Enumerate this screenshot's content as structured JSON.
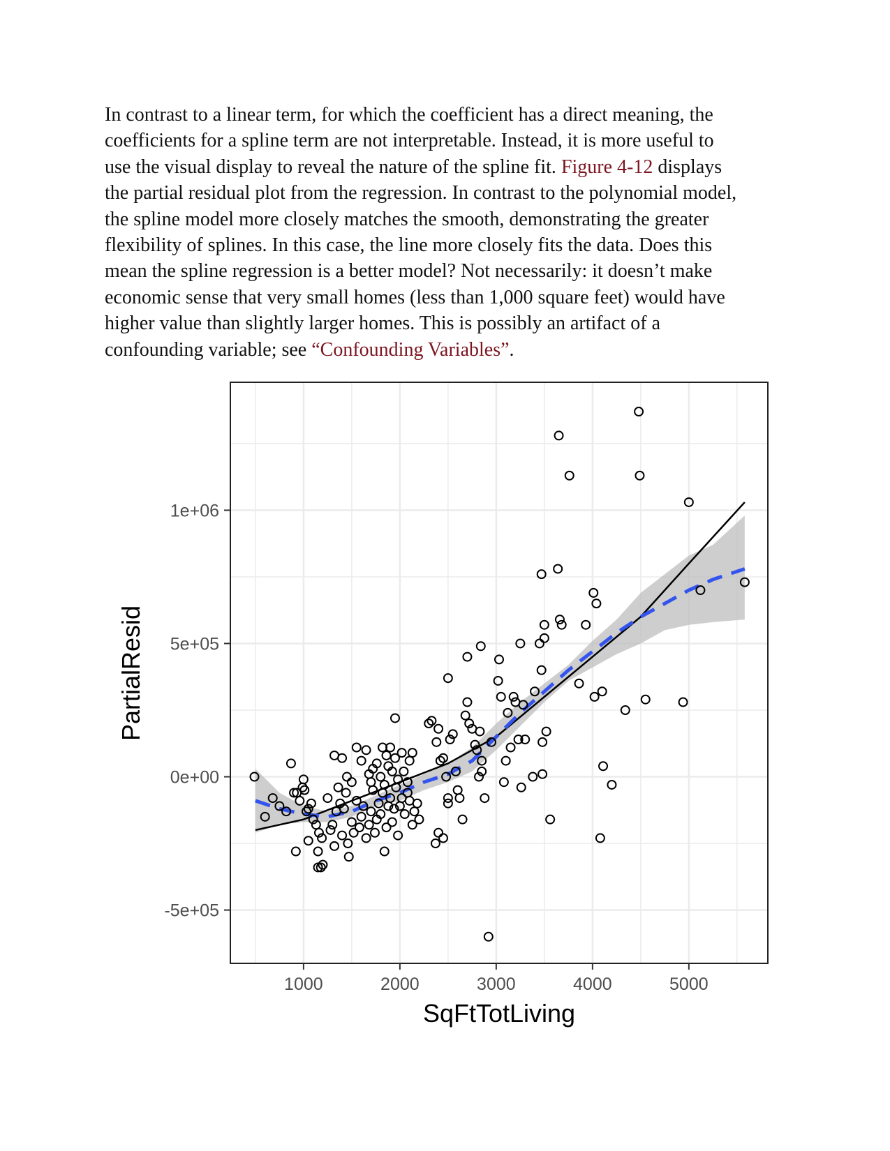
{
  "paragraph": {
    "l1": "In contrast to a linear term, for which the coefficient has a direct meaning, the",
    "l2": "coefficients for a spline term are not interpretable. Instead, it is more useful to",
    "l3_pre": "use the visual display to reveal the nature of the spline fit. ",
    "l3_link": "Figure 4-12",
    "l3_post": " displays",
    "l4": "the partial residual plot from the regression. In contrast to the polynomial model,",
    "l5": "the spline model more closely matches the smooth, demonstrating the greater",
    "l6": "flexibility of splines. In this case, the line more closely fits the data. Does this",
    "l7": "mean the spline regression is a better model? Not necessarily: it doesn’t make",
    "l8": "economic sense that very small homes (less than 1,000 square feet) would have",
    "l9": "higher value than slightly larger homes. This is possibly an artifact of a",
    "l10_pre": "confounding variable; see ",
    "l10_link": "“Confounding Variables”",
    "l10_post": "."
  },
  "chart_data": {
    "type": "scatter",
    "xlabel": "SqFtTotLiving",
    "ylabel": "PartialResid",
    "xlim": [
      240,
      5820
    ],
    "ylim": [
      -700000,
      1480000
    ],
    "x_ticks": [
      1000,
      2000,
      3000,
      4000,
      5000
    ],
    "y_ticks": [
      -500000,
      0,
      500000,
      1000000
    ],
    "x_tick_labels": [
      "1000",
      "2000",
      "3000",
      "4000",
      "5000"
    ],
    "y_tick_labels": [
      "-5e+05",
      "0e+00",
      "5e+05",
      "1e+06"
    ],
    "grid": true,
    "colors": {
      "points": "#000000",
      "spline": "#000000",
      "smooth": "#3355ee",
      "band": "#bdbdbd",
      "grid": "#ebebeb"
    },
    "points": [
      [
        490,
        0
      ],
      [
        600,
        -150000
      ],
      [
        680,
        -80000
      ],
      [
        750,
        -110000
      ],
      [
        820,
        -130000
      ],
      [
        870,
        50000
      ],
      [
        900,
        -60000
      ],
      [
        930,
        -60000
      ],
      [
        960,
        -90000
      ],
      [
        990,
        -40000
      ],
      [
        1000,
        -10000
      ],
      [
        1010,
        -50000
      ],
      [
        1030,
        -130000
      ],
      [
        1050,
        -120000
      ],
      [
        1080,
        -100000
      ],
      [
        1100,
        -160000
      ],
      [
        1130,
        -180000
      ],
      [
        1160,
        -210000
      ],
      [
        1190,
        -230000
      ],
      [
        920,
        -280000
      ],
      [
        1050,
        -240000
      ],
      [
        1150,
        -280000
      ],
      [
        1150,
        -340000
      ],
      [
        1180,
        -340000
      ],
      [
        1200,
        -330000
      ],
      [
        1250,
        -80000
      ],
      [
        1280,
        -200000
      ],
      [
        1300,
        -180000
      ],
      [
        1320,
        -260000
      ],
      [
        1340,
        -130000
      ],
      [
        1360,
        -40000
      ],
      [
        1380,
        -100000
      ],
      [
        1400,
        -220000
      ],
      [
        1420,
        -120000
      ],
      [
        1440,
        -60000
      ],
      [
        1460,
        -250000
      ],
      [
        1470,
        -300000
      ],
      [
        1500,
        -170000
      ],
      [
        1520,
        -210000
      ],
      [
        1550,
        -90000
      ],
      [
        1580,
        -190000
      ],
      [
        1600,
        -150000
      ],
      [
        1620,
        -110000
      ],
      [
        1650,
        -230000
      ],
      [
        1680,
        -180000
      ],
      [
        1700,
        -130000
      ],
      [
        1720,
        -50000
      ],
      [
        1740,
        -210000
      ],
      [
        1760,
        -160000
      ],
      [
        1780,
        -100000
      ],
      [
        1800,
        -140000
      ],
      [
        1820,
        -60000
      ],
      [
        1840,
        -280000
      ],
      [
        1860,
        -190000
      ],
      [
        1880,
        -110000
      ],
      [
        1900,
        -80000
      ],
      [
        1920,
        -170000
      ],
      [
        1940,
        -120000
      ],
      [
        1960,
        -40000
      ],
      [
        1980,
        -220000
      ],
      [
        2000,
        -110000
      ],
      [
        2020,
        -80000
      ],
      [
        2050,
        -140000
      ],
      [
        2080,
        -60000
      ],
      [
        2100,
        -90000
      ],
      [
        2130,
        -180000
      ],
      [
        2150,
        -130000
      ],
      [
        2180,
        -100000
      ],
      [
        2200,
        -160000
      ],
      [
        1320,
        80000
      ],
      [
        1400,
        70000
      ],
      [
        1450,
        0
      ],
      [
        1500,
        -20000
      ],
      [
        1550,
        110000
      ],
      [
        1600,
        60000
      ],
      [
        1650,
        100000
      ],
      [
        1680,
        10000
      ],
      [
        1700,
        -20000
      ],
      [
        1720,
        30000
      ],
      [
        1760,
        50000
      ],
      [
        1800,
        0
      ],
      [
        1820,
        110000
      ],
      [
        1840,
        -30000
      ],
      [
        1860,
        80000
      ],
      [
        1880,
        40000
      ],
      [
        1900,
        110000
      ],
      [
        1920,
        20000
      ],
      [
        1950,
        70000
      ],
      [
        1980,
        -10000
      ],
      [
        2020,
        90000
      ],
      [
        2040,
        20000
      ],
      [
        2080,
        -20000
      ],
      [
        2100,
        60000
      ],
      [
        2130,
        90000
      ],
      [
        1950,
        220000
      ],
      [
        2300,
        200000
      ],
      [
        2330,
        210000
      ],
      [
        2380,
        130000
      ],
      [
        2400,
        180000
      ],
      [
        2420,
        60000
      ],
      [
        2450,
        70000
      ],
      [
        2480,
        0
      ],
      [
        2500,
        -80000
      ],
      [
        2500,
        -100000
      ],
      [
        2520,
        140000
      ],
      [
        2550,
        160000
      ],
      [
        2580,
        20000
      ],
      [
        2600,
        -50000
      ],
      [
        2620,
        -80000
      ],
      [
        2650,
        -160000
      ],
      [
        2680,
        230000
      ],
      [
        2700,
        280000
      ],
      [
        2720,
        200000
      ],
      [
        2750,
        180000
      ],
      [
        2780,
        120000
      ],
      [
        2800,
        100000
      ],
      [
        2830,
        170000
      ],
      [
        2850,
        60000
      ],
      [
        2850,
        20000
      ],
      [
        2820,
        0
      ],
      [
        2880,
        -80000
      ],
      [
        2400,
        -210000
      ],
      [
        2450,
        -230000
      ],
      [
        2370,
        -250000
      ],
      [
        2700,
        450000
      ],
      [
        2840,
        490000
      ],
      [
        2500,
        370000
      ],
      [
        2920,
        -600000
      ],
      [
        2950,
        130000
      ],
      [
        3020,
        360000
      ],
      [
        3030,
        440000
      ],
      [
        3050,
        300000
      ],
      [
        3080,
        -20000
      ],
      [
        3100,
        60000
      ],
      [
        3120,
        240000
      ],
      [
        3150,
        110000
      ],
      [
        3180,
        300000
      ],
      [
        3200,
        280000
      ],
      [
        3230,
        140000
      ],
      [
        3260,
        -40000
      ],
      [
        3250,
        500000
      ],
      [
        3280,
        270000
      ],
      [
        3300,
        140000
      ],
      [
        3380,
        0
      ],
      [
        3400,
        320000
      ],
      [
        3450,
        500000
      ],
      [
        3470,
        400000
      ],
      [
        3480,
        130000
      ],
      [
        3480,
        10000
      ],
      [
        3500,
        520000
      ],
      [
        3500,
        570000
      ],
      [
        3520,
        170000
      ],
      [
        3470,
        760000
      ],
      [
        3560,
        -160000
      ],
      [
        3640,
        780000
      ],
      [
        3660,
        590000
      ],
      [
        3680,
        570000
      ],
      [
        3650,
        1280000
      ],
      [
        3760,
        1130000
      ],
      [
        3860,
        350000
      ],
      [
        3930,
        570000
      ],
      [
        4010,
        690000
      ],
      [
        4020,
        300000
      ],
      [
        4040,
        650000
      ],
      [
        4080,
        -230000
      ],
      [
        4100,
        320000
      ],
      [
        4110,
        40000
      ],
      [
        4200,
        -30000
      ],
      [
        4340,
        250000
      ],
      [
        4480,
        1370000
      ],
      [
        4490,
        1130000
      ],
      [
        4550,
        290000
      ],
      [
        4940,
        280000
      ],
      [
        5000,
        1030000
      ],
      [
        5120,
        700000
      ],
      [
        5580,
        730000
      ]
    ],
    "series": [
      {
        "name": "",
        "style": "solid",
        "x": [
          500,
          1000,
          1500,
          2000,
          2500,
          3000,
          3500,
          4000,
          4500,
          5000,
          5580
        ],
        "y": [
          -200000,
          -160000,
          -90000,
          -20000,
          50000,
          150000,
          300000,
          450000,
          600000,
          800000,
          1030000
        ]
      },
      {
        "name": "",
        "style": "dashed",
        "x": [
          500,
          750,
          1000,
          1250,
          1500,
          1750,
          2000,
          2250,
          2500,
          2750,
          3000,
          3250,
          3500,
          3750,
          4000,
          4250,
          4500,
          4750,
          5000,
          5250,
          5580
        ],
        "y": [
          -90000,
          -120000,
          -140000,
          -150000,
          -130000,
          -90000,
          -60000,
          -20000,
          10000,
          60000,
          150000,
          240000,
          320000,
          400000,
          470000,
          540000,
          600000,
          650000,
          700000,
          740000,
          780000
        ]
      },
      {
        "name": "",
        "style": "band",
        "x": [
          500,
          750,
          1000,
          1250,
          1500,
          1750,
          2000,
          2250,
          2500,
          2750,
          3000,
          3250,
          3500,
          3750,
          4000,
          4250,
          4500,
          4750,
          5000,
          5250,
          5580
        ],
        "upper": [
          30000,
          -60000,
          -110000,
          -130000,
          -110000,
          -70000,
          -30000,
          10000,
          50000,
          110000,
          200000,
          280000,
          350000,
          420000,
          510000,
          590000,
          690000,
          760000,
          830000,
          870000,
          980000
        ],
        "lower": [
          -210000,
          -180000,
          -170000,
          -170000,
          -150000,
          -110000,
          -90000,
          -50000,
          -20000,
          20000,
          100000,
          190000,
          280000,
          360000,
          410000,
          460000,
          500000,
          550000,
          570000,
          580000,
          590000
        ]
      }
    ]
  }
}
